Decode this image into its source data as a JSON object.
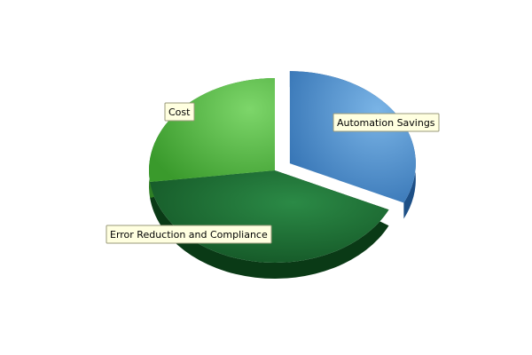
{
  "chart_data": {
    "type": "pie",
    "title": "",
    "categories": [
      "Automation Savings",
      "Error Reduction and Compliance",
      "Cost"
    ],
    "values": [
      32,
      41,
      27
    ],
    "exploded": [
      "Automation Savings"
    ],
    "legend": "none",
    "colors": {
      "Automation Savings": "#4a86c6",
      "Error Reduction and Compliance": "#1f6b34",
      "Cost": "#5cbf4c"
    },
    "label_background": "#ffffe0"
  }
}
